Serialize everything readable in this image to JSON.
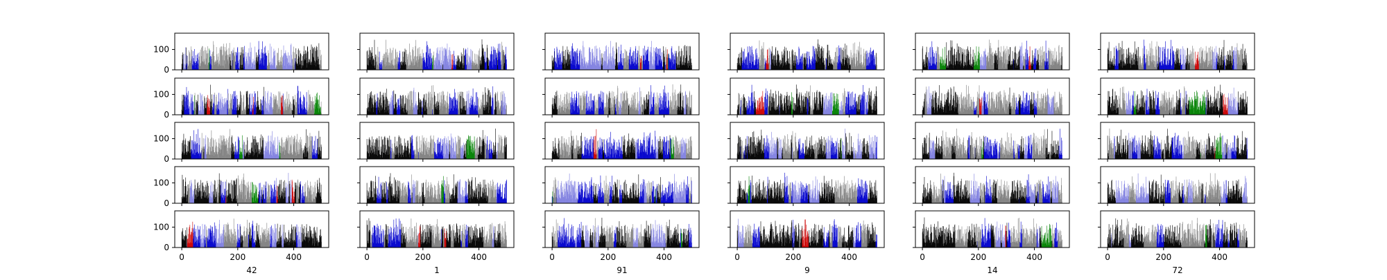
{
  "chart_data": {
    "type": "bar",
    "layout": {
      "rows": 5,
      "cols": 6,
      "sharex": true,
      "sharey": true
    },
    "xlim": [
      -25,
      525
    ],
    "ylim": [
      0,
      180
    ],
    "x_ticks": [
      0,
      200,
      400
    ],
    "x_tick_labels": [
      "0",
      "200",
      "400"
    ],
    "y_ticks": [
      0,
      100
    ],
    "y_tick_labels": [
      "0",
      "100"
    ],
    "n_bars": 500,
    "column_labels": [
      "42",
      "1",
      "91",
      "9",
      "14",
      "72"
    ],
    "seeds": [
      42,
      1,
      91,
      9,
      14,
      72
    ],
    "bar_colors": [
      "#000000",
      "#808080",
      "#0000cc",
      "#8080e0",
      "#cc0000",
      "#008000"
    ],
    "value_range": [
      20,
      150
    ],
    "grid": false,
    "legend": "none",
    "note": ""
  }
}
